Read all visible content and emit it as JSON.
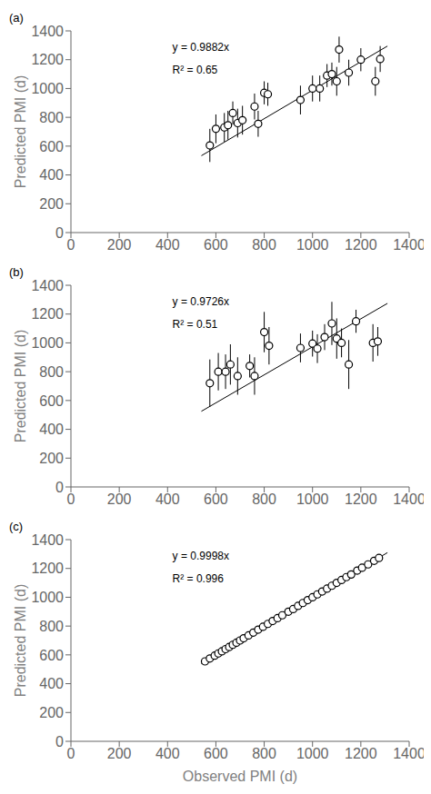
{
  "chart_data": [
    {
      "type": "scatter",
      "title": "(a)",
      "annotations": [
        "y = 0.9882x",
        "R² = 0.65"
      ],
      "ylabel": "Predicted PMI (d)",
      "xlim": [
        0,
        1400
      ],
      "ylim": [
        0,
        1400
      ],
      "xticks": [
        0,
        200,
        400,
        600,
        800,
        1000,
        1200,
        1400
      ],
      "yticks": [
        0,
        200,
        400,
        600,
        800,
        1000,
        1200,
        1400
      ],
      "grid": false,
      "series": [
        {
          "type": "line",
          "x": [
            540,
            1310
          ],
          "values": [
            533.628,
            1294.542
          ],
          "color": "#000000",
          "line_style": "solid"
        },
        {
          "type": "scatter",
          "x": [
            575,
            600,
            635,
            650,
            670,
            690,
            710,
            760,
            775,
            800,
            815,
            950,
            1000,
            1030,
            1060,
            1080,
            1100,
            1110,
            1150,
            1200,
            1260,
            1280
          ],
          "values": [
            605,
            720,
            730,
            745,
            830,
            760,
            780,
            875,
            755,
            970,
            960,
            920,
            1000,
            1000,
            1090,
            1100,
            1050,
            1270,
            1110,
            1200,
            1050,
            1205
          ],
          "yerr": [
            115,
            100,
            100,
            100,
            80,
            100,
            100,
            90,
            90,
            80,
            80,
            100,
            90,
            90,
            80,
            80,
            100,
            90,
            90,
            80,
            100,
            90
          ],
          "color": "#000000",
          "marker": "circle"
        }
      ]
    },
    {
      "type": "scatter",
      "title": "(b)",
      "annotations": [
        "y = 0.9726x",
        "R² = 0.51"
      ],
      "ylabel": "Predicted PMI (d)",
      "xlim": [
        0,
        1400
      ],
      "ylim": [
        0,
        1400
      ],
      "xticks": [
        0,
        200,
        400,
        600,
        800,
        1000,
        1200,
        1400
      ],
      "yticks": [
        0,
        200,
        400,
        600,
        800,
        1000,
        1200,
        1400
      ],
      "grid": false,
      "series": [
        {
          "type": "line",
          "x": [
            540,
            1310
          ],
          "values": [
            525.204,
            1274.106
          ],
          "color": "#000000",
          "line_style": "solid"
        },
        {
          "type": "scatter",
          "x": [
            575,
            610,
            640,
            660,
            690,
            740,
            760,
            800,
            820,
            950,
            1000,
            1020,
            1050,
            1080,
            1100,
            1120,
            1150,
            1180,
            1250,
            1270
          ],
          "values": [
            720,
            800,
            800,
            850,
            770,
            840,
            770,
            1075,
            980,
            965,
            995,
            960,
            1040,
            1135,
            1030,
            1000,
            850,
            1150,
            1000,
            1010
          ],
          "yerr": [
            165,
            130,
            120,
            140,
            130,
            80,
            130,
            140,
            130,
            100,
            90,
            100,
            90,
            150,
            140,
            100,
            170,
            80,
            130,
            100
          ],
          "color": "#000000",
          "marker": "circle"
        }
      ]
    },
    {
      "type": "scatter",
      "title": "(c)",
      "annotations": [
        "y = 0.9998x",
        "R² = 0.996"
      ],
      "xlabel": "Observed PMI (d)",
      "ylabel": "Predicted PMI (d)",
      "xlim": [
        0,
        1400
      ],
      "ylim": [
        0,
        1400
      ],
      "xticks": [
        0,
        200,
        400,
        600,
        800,
        1000,
        1200,
        1400
      ],
      "yticks": [
        0,
        200,
        400,
        600,
        800,
        1000,
        1200,
        1400
      ],
      "grid": false,
      "series": [
        {
          "type": "line",
          "x": [
            540,
            1310
          ],
          "values": [
            539.892,
            1309.738
          ],
          "color": "#000000",
          "line_style": "solid"
        },
        {
          "type": "scatter",
          "x": [
            555,
            575,
            595,
            610,
            625,
            640,
            655,
            670,
            685,
            700,
            715,
            735,
            755,
            775,
            795,
            815,
            835,
            855,
            875,
            900,
            920,
            940,
            960,
            980,
            1000,
            1020,
            1040,
            1060,
            1080,
            1100,
            1120,
            1140,
            1160,
            1185,
            1205,
            1230,
            1255,
            1275
          ],
          "values": [
            555,
            575,
            595,
            610,
            625,
            640,
            655,
            670,
            685,
            700,
            715,
            735,
            755,
            775,
            795,
            815,
            835,
            855,
            875,
            900,
            918,
            940,
            960,
            980,
            1000,
            1020,
            1040,
            1060,
            1080,
            1100,
            1120,
            1140,
            1158,
            1185,
            1205,
            1228,
            1253,
            1273
          ],
          "yerr": [
            12,
            10,
            10,
            8,
            8,
            8,
            8,
            8,
            8,
            8,
            8,
            8,
            8,
            8,
            8,
            8,
            8,
            8,
            8,
            8,
            8,
            8,
            8,
            8,
            8,
            8,
            8,
            8,
            8,
            8,
            8,
            8,
            8,
            8,
            8,
            8,
            8,
            8
          ],
          "color": "#000000",
          "marker": "circle"
        }
      ]
    }
  ]
}
